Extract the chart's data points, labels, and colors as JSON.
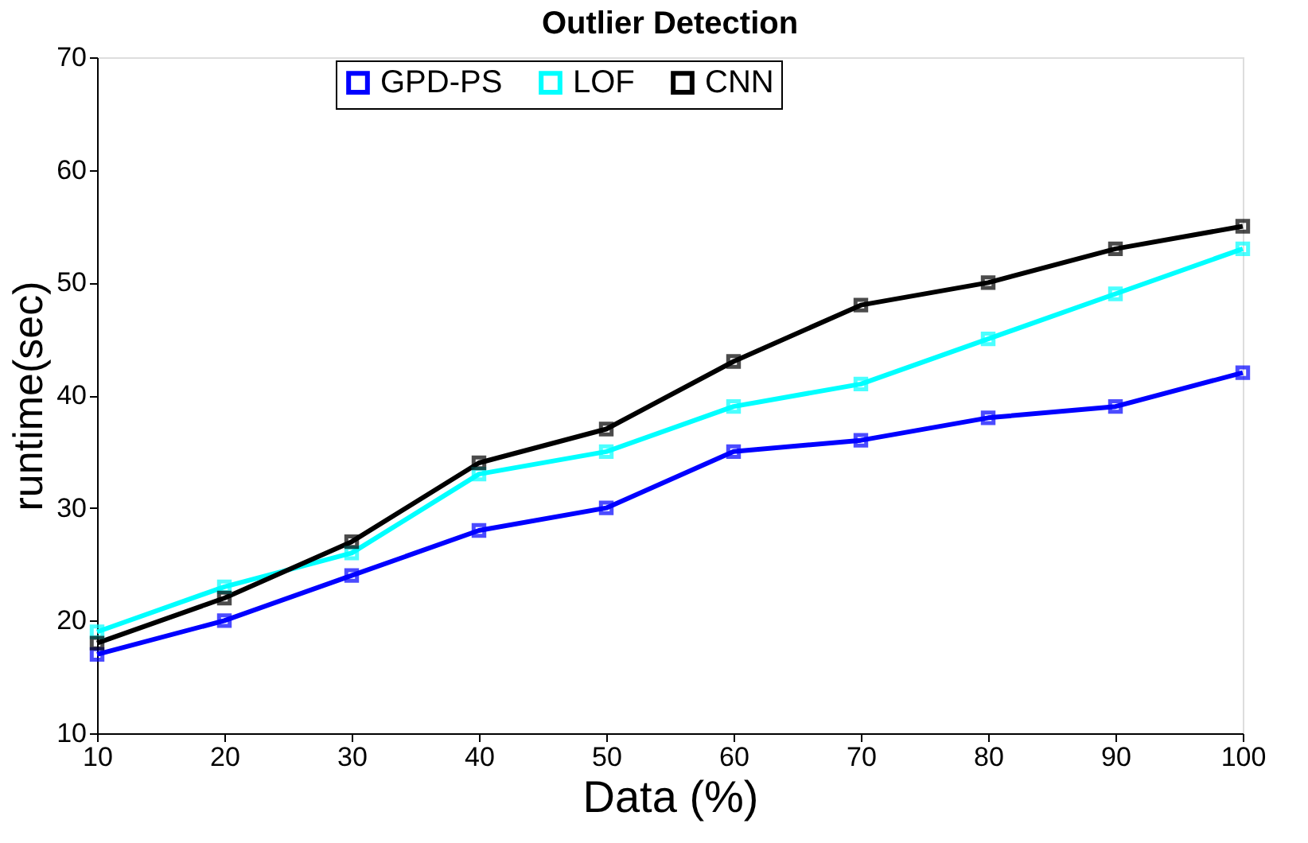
{
  "chart_data": {
    "type": "line",
    "title": "Outlier Detection",
    "xlabel": "Data (%)",
    "ylabel": "runtime(sec)",
    "x": [
      10,
      20,
      30,
      40,
      50,
      60,
      70,
      80,
      90,
      100
    ],
    "series": [
      {
        "name": "GPD-PS",
        "color": "#0000ff",
        "values": [
          17,
          20,
          24,
          28,
          30,
          35,
          36,
          38,
          39,
          42
        ]
      },
      {
        "name": "LOF",
        "color": "#00ffff",
        "values": [
          19,
          23,
          26,
          33,
          35,
          39,
          41,
          45,
          49,
          53
        ]
      },
      {
        "name": "CNN",
        "color": "#000000",
        "values": [
          18,
          22,
          27,
          34,
          37,
          43,
          48,
          50,
          53,
          55
        ]
      }
    ],
    "xlim": [
      10,
      100
    ],
    "xticks": [
      10,
      20,
      30,
      40,
      50,
      60,
      70,
      80,
      90,
      100
    ],
    "ylim": [
      10,
      70
    ],
    "yticks": [
      10,
      20,
      30,
      40,
      50,
      60,
      70
    ],
    "grid": false,
    "legend": "top",
    "marker": "square",
    "line_style": "solid"
  }
}
